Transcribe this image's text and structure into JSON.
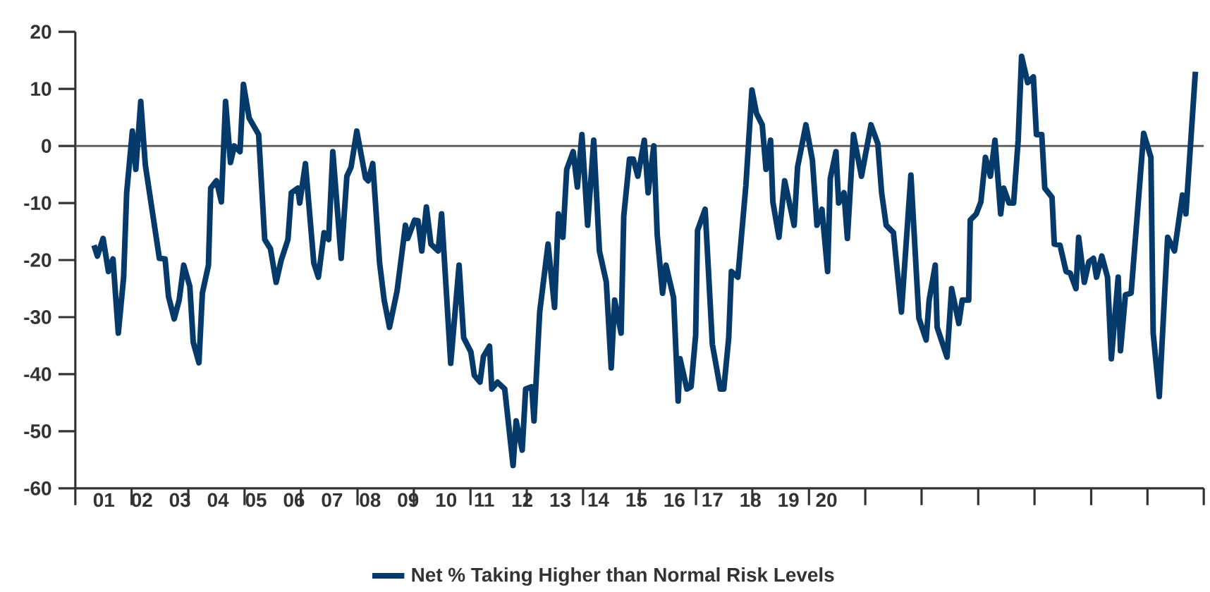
{
  "chart_data": {
    "type": "line",
    "legend": "bottom",
    "xlim": [
      0.25,
      29.92
    ],
    "ylim": [
      -60,
      20
    ],
    "yticks": [
      -60,
      -50,
      -40,
      -30,
      -20,
      -10,
      0,
      10,
      20
    ],
    "xticks": [
      {
        "value": 0.25,
        "label": null
      },
      {
        "value": 1.73,
        "label": null
      },
      {
        "value": 3.22,
        "label": null
      },
      {
        "value": 4.7,
        "label": null
      },
      {
        "value": 6.18,
        "label": null
      },
      {
        "value": 7.67,
        "label": null
      },
      {
        "value": 9.15,
        "label": null
      },
      {
        "value": 10.64,
        "label": null
      },
      {
        "value": 12.12,
        "label": null
      },
      {
        "value": 13.6,
        "label": null
      },
      {
        "value": 15.09,
        "label": null
      },
      {
        "value": 16.57,
        "label": null
      },
      {
        "value": 18.05,
        "label": null
      },
      {
        "value": 19.54,
        "label": null
      },
      {
        "value": 21.02,
        "label": null
      },
      {
        "value": 22.5,
        "label": null
      },
      {
        "value": 23.99,
        "label": null
      },
      {
        "value": 25.47,
        "label": null
      },
      {
        "value": 26.96,
        "label": null
      },
      {
        "value": 28.44,
        "label": null
      },
      {
        "value": 29.92,
        "label": null
      },
      {
        "value": 1,
        "label": "01"
      },
      {
        "value": 2,
        "label": "02"
      },
      {
        "value": 3,
        "label": "03"
      },
      {
        "value": 4,
        "label": "04"
      },
      {
        "value": 5,
        "label": "05"
      },
      {
        "value": 6,
        "label": "06"
      },
      {
        "value": 7,
        "label": "07"
      },
      {
        "value": 8,
        "label": "08"
      },
      {
        "value": 9,
        "label": "09"
      },
      10,
      11,
      12,
      13,
      14,
      15,
      16,
      17,
      18,
      19,
      20
    ],
    "ref_lines": [
      {
        "axis": "y",
        "value": 0,
        "color": "#555555"
      }
    ],
    "series": [
      {
        "name": "Net % Taking Higher than Normal Risk Levels",
        "color": "#063a6b",
        "x": [
          0.74,
          0.83,
          0.98,
          1.12,
          1.24,
          1.38,
          1.52,
          1.6,
          1.75,
          1.84,
          1.97,
          2.09,
          2.46,
          2.61,
          2.7,
          2.85,
          2.98,
          3.1,
          3.26,
          3.35,
          3.5,
          3.59,
          3.75,
          3.81,
          3.96,
          4.09,
          4.2,
          4.33,
          4.43,
          4.58,
          4.67,
          4.82,
          5.07,
          5.23,
          5.38,
          5.53,
          5.66,
          5.84,
          5.93,
          6.1,
          6.15,
          6.3,
          6.52,
          6.64,
          6.79,
          6.91,
          7.02,
          7.24,
          7.39,
          7.5,
          7.65,
          7.88,
          7.95,
          8.07,
          8.25,
          8.37,
          8.51,
          8.71,
          8.93,
          8.99,
          9.17,
          9.26,
          9.36,
          9.48,
          9.6,
          9.79,
          9.88,
          10.12,
          10.34,
          10.46,
          10.65,
          10.74,
          10.89,
          10.98,
          11.14,
          11.2,
          11.35,
          11.54,
          11.76,
          11.84,
          12,
          12.09,
          12.25,
          12.31,
          12.46,
          12.68,
          12.85,
          12.95,
          13.07,
          13.17,
          13.34,
          13.45,
          13.57,
          13.72,
          13.88,
          14.03,
          14.21,
          14.34,
          14.43,
          14.6,
          14.67,
          14.82,
          14.92,
          15.04,
          15.21,
          15.31,
          15.46,
          15.55,
          15.69,
          15.78,
          15.98,
          16.1,
          16.15,
          16.33,
          16.44,
          16.56,
          16.61,
          16.81,
          17,
          17.21,
          17.3,
          17.43,
          17.5,
          17.67,
          17.88,
          18.04,
          18.16,
          18.31,
          18.41,
          18.53,
          18.59,
          18.75,
          18.9,
          19.15,
          19.24,
          19.46,
          19.63,
          19.75,
          19.88,
          20.03,
          20.1,
          20.25,
          20.32,
          20.46,
          20.55,
          20.71,
          20.92,
          21.17,
          21.35,
          21.45,
          21.57,
          21.76,
          21.97,
          22.22,
          22.43,
          22.62,
          22.7,
          22.86,
          22.91,
          23.17,
          23.29,
          23.48,
          23.57,
          23.74,
          23.78,
          23.94,
          24.06,
          24.18,
          24.31,
          24.43,
          24.58,
          24.66,
          24.8,
          24.92,
          25.04,
          25.13,
          25.29,
          25.44,
          25.52,
          25.66,
          25.74,
          25.93,
          25.99,
          26.14,
          26.3,
          26.41,
          26.56,
          26.63,
          26.78,
          26.9,
          27.02,
          27.1,
          27.24,
          27.39,
          27.49,
          27.67,
          27.73,
          27.86,
          28.01,
          28.34,
          28.53,
          28.59,
          28.75,
          28.97,
          29.15,
          29.36,
          29.45,
          29.7
        ],
        "values": [
          -17.4,
          -19.3,
          -16.2,
          -22,
          -19.8,
          -32.8,
          -23,
          -8.2,
          2.6,
          -4.1,
          7.8,
          -3.3,
          -19.7,
          -19.8,
          -26.4,
          -30.3,
          -27,
          -20.9,
          -24.6,
          -34.4,
          -38,
          -25.8,
          -20.9,
          -7.4,
          -6.1,
          -9.8,
          7.8,
          -2.9,
          0,
          -1,
          10.8,
          4.9,
          2,
          -16.4,
          -18,
          -23.9,
          -20.1,
          -16.4,
          -8.2,
          -7.4,
          -10,
          -3.1,
          -20.5,
          -23,
          -15.2,
          -16.4,
          -1,
          -19.7,
          -5.3,
          -3.7,
          2.6,
          -5.6,
          -6.1,
          -3.1,
          -20.5,
          -27,
          -31.8,
          -25.4,
          -13.9,
          -16.2,
          -13,
          -13.1,
          -18.4,
          -10.7,
          -17.2,
          -18.4,
          -11.9,
          -38.1,
          -20.9,
          -33.6,
          -36.1,
          -40.2,
          -41.4,
          -36.9,
          -35.1,
          -42.6,
          -41.4,
          -42.6,
          -56,
          -48.2,
          -53.3,
          -42.6,
          -42.2,
          -48.2,
          -29.1,
          -17.2,
          -28.3,
          -11.9,
          -16,
          -4.1,
          -1,
          -7.2,
          2,
          -13.9,
          1,
          -18.4,
          -23.8,
          -38.9,
          -27,
          -32.8,
          -12.3,
          -2.3,
          -2.3,
          -5.3,
          1,
          -8.2,
          0,
          -15.6,
          -25.8,
          -20.9,
          -26.6,
          -44.7,
          -37.3,
          -42.6,
          -42.2,
          -33.2,
          -14.8,
          -11.1,
          -34.8,
          -42.6,
          -42.6,
          -33.6,
          -22,
          -23,
          -7,
          9.8,
          5.7,
          3.7,
          -4.1,
          1,
          -9.8,
          -16,
          -6.1,
          -13.9,
          -3.7,
          3.7,
          -2.5,
          -13.9,
          -11.1,
          -22,
          -5.7,
          -1,
          -10,
          -8.2,
          -16.2,
          2,
          -5.3,
          3.7,
          0.4,
          -8.2,
          -13.9,
          -15.2,
          -29.1,
          -5.1,
          -30.2,
          -34,
          -27,
          -20.9,
          -31.8,
          -37,
          -25,
          -31.1,
          -27,
          -27,
          -13,
          -11.9,
          -9.8,
          -2,
          -5.3,
          1,
          -11.9,
          -7.4,
          -10,
          -10,
          1,
          15.7,
          11.1,
          12.1,
          2,
          2,
          -7.4,
          -9,
          -17.2,
          -17.4,
          -22,
          -22.3,
          -25,
          -16,
          -23.9,
          -20.3,
          -19.7,
          -23,
          -19.3,
          -23,
          -37.3,
          -23,
          -35.9,
          -26.1,
          -25.8,
          2.2,
          -2,
          -32.8,
          -43.9,
          -16,
          -18.4,
          -8.6,
          -11.9,
          13
        ]
      }
    ]
  }
}
